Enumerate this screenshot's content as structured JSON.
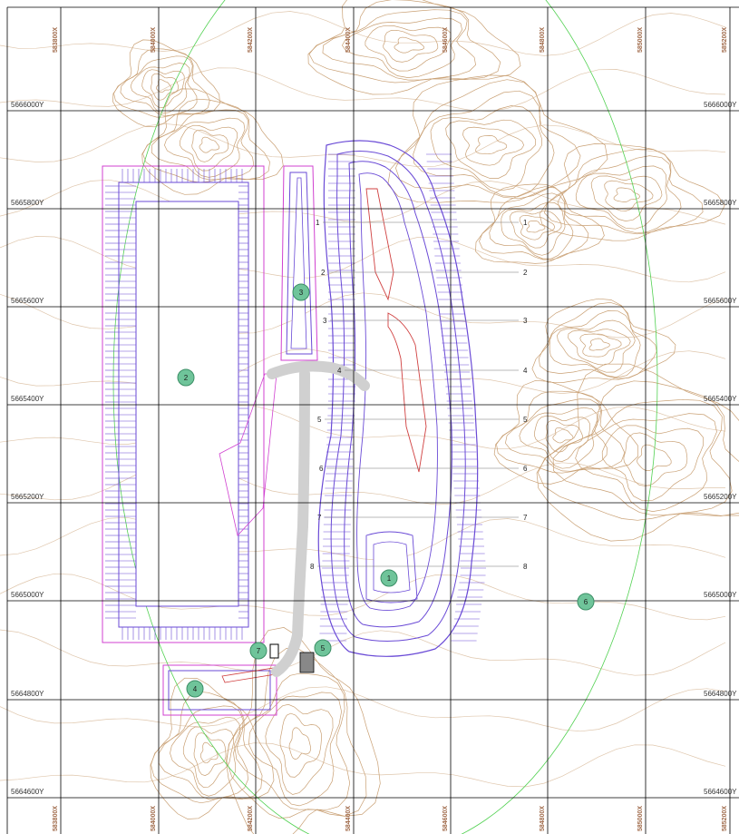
{
  "grid": {
    "easting_labels": [
      "583800X",
      "584000X",
      "584200X",
      "584400X",
      "584600X",
      "584800X",
      "585000X",
      "585200X"
    ],
    "northing_labels": [
      "5666000Y",
      "5665800Y",
      "5665600Y",
      "5665400Y",
      "5665200Y",
      "5665000Y",
      "5664800Y",
      "5664600Y"
    ]
  },
  "markers": [
    {
      "number": "1",
      "color": "#6fc49a"
    },
    {
      "number": "2",
      "color": "#6fc49a"
    },
    {
      "number": "3",
      "color": "#6fc49a"
    },
    {
      "number": "4",
      "color": "#6fc49a"
    },
    {
      "number": "5",
      "color": "#6fc49a"
    },
    {
      "number": "6",
      "color": "#6fc49a"
    },
    {
      "number": "7",
      "color": "#6fc49a"
    }
  ],
  "section_lines": [
    "1",
    "2",
    "3",
    "4",
    "5",
    "6",
    "7",
    "8"
  ],
  "colors": {
    "grid": "#000000",
    "contour": "#c9a074",
    "pit_outline": "#6a4ad6",
    "dump_outline": "#d040d0",
    "haul_road": "#d0d0d0",
    "boundary": "#52d152",
    "marker": "#6fc49a"
  }
}
